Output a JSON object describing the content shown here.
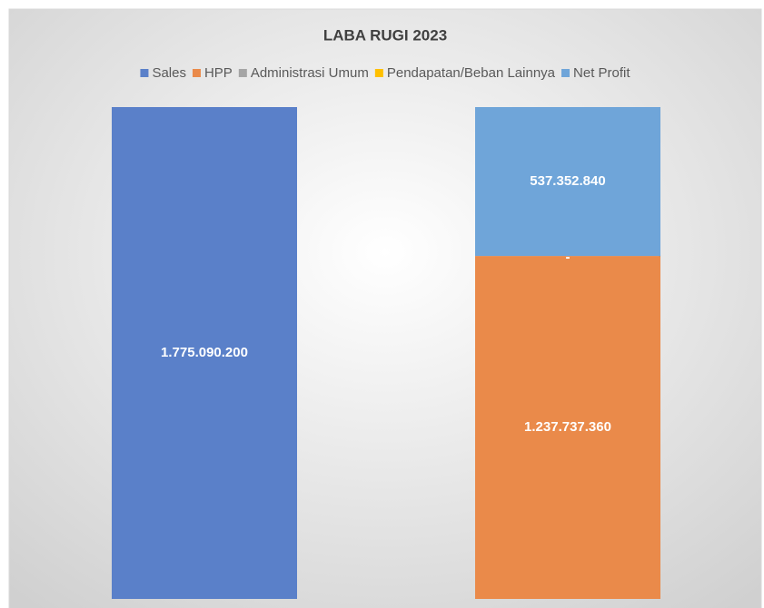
{
  "chart_data": {
    "type": "stacked_bar",
    "title": "LABA RUGI 2023",
    "categories": [
      null,
      null
    ],
    "series": [
      {
        "name": "Sales",
        "color": "#5a80c9",
        "values": [
          1775090200,
          null
        ],
        "value_labels": [
          "1.775.090.200",
          null
        ]
      },
      {
        "name": "HPP",
        "color": "#ea8a4a",
        "values": [
          null,
          1237737360
        ],
        "value_labels": [
          null,
          "1.237.737.360"
        ]
      },
      {
        "name": "Administrasi Umum",
        "color": "#a5a5a5",
        "values": [
          null,
          0
        ],
        "value_labels": [
          null,
          "-"
        ]
      },
      {
        "name": "Pendapatan/Beban Lainnya",
        "color": "#ffc000",
        "values": [
          null,
          0
        ],
        "value_labels": [
          null,
          "-"
        ]
      },
      {
        "name": "Net Profit",
        "color": "#6fa5d9",
        "values": [
          null,
          537352840
        ],
        "value_labels": [
          null,
          "537.352.840"
        ]
      }
    ],
    "ylim": [
      0,
      1775090200
    ],
    "legend": "top"
  }
}
